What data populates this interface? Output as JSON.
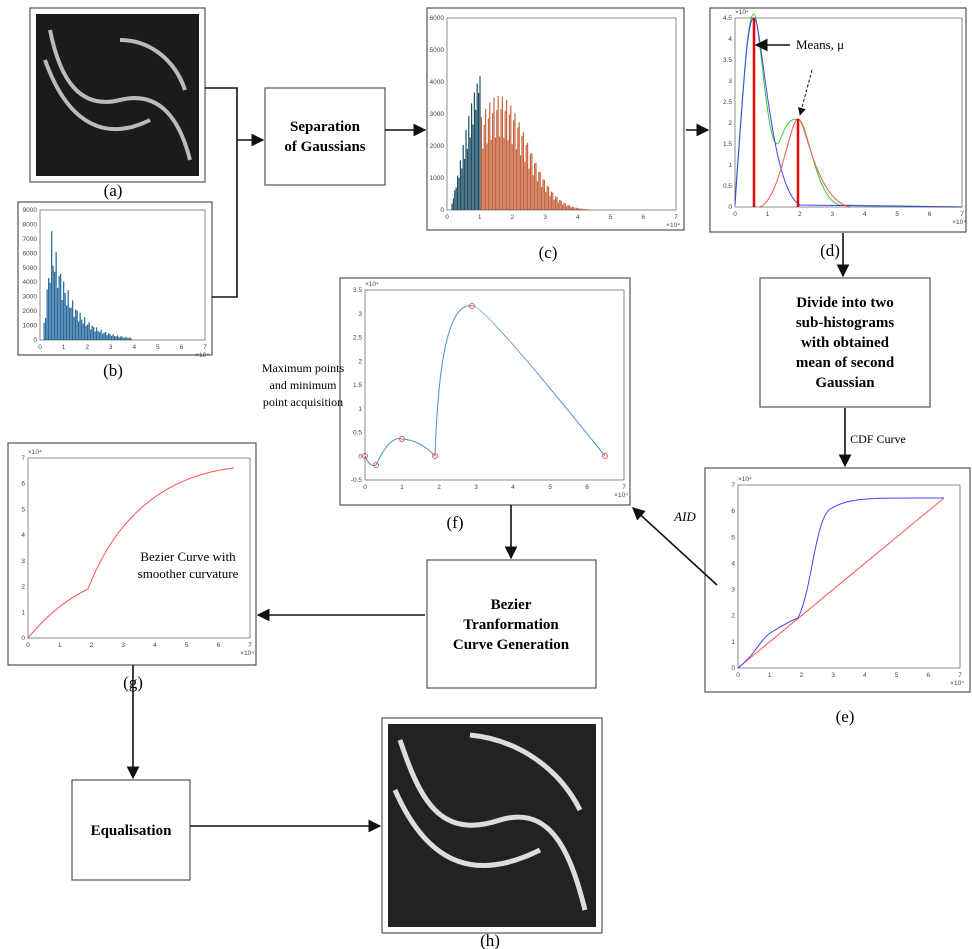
{
  "panels": {
    "a": {
      "label": "(a)"
    },
    "b": {
      "label": "(b)",
      "y_ticks": [
        0,
        1000,
        2000,
        3000,
        4000,
        5000,
        6000,
        7000,
        8000,
        9000
      ],
      "x_ticks": [
        0,
        1,
        2,
        3,
        4,
        5,
        6,
        7
      ],
      "x_exponent": "×10⁴"
    },
    "c": {
      "label": "(c)",
      "y_ticks": [
        0,
        1000,
        2000,
        3000,
        4000,
        5000,
        6000
      ],
      "x_ticks": [
        0,
        1,
        2,
        3,
        4,
        5,
        6,
        7
      ],
      "x_exponent": "×10⁴"
    },
    "d": {
      "label": "(d)",
      "y_ticks": [
        0,
        0.5,
        1,
        1.5,
        2,
        2.5,
        3,
        3.5,
        4,
        4.5
      ],
      "x_ticks": [
        0,
        1,
        2,
        3,
        4,
        5,
        6,
        7
      ],
      "y_exponent": "×10⁴",
      "x_exponent": "×10⁴",
      "annotation": "Means, μ"
    },
    "e": {
      "label": "(e)",
      "y_ticks": [
        0,
        1,
        2,
        3,
        4,
        5,
        6,
        7
      ],
      "x_ticks": [
        0,
        1,
        2,
        3,
        4,
        5,
        6,
        7
      ],
      "y_exponent": "×10⁴",
      "x_exponent": "×10⁴"
    },
    "f": {
      "label": "(f)",
      "y_ticks": [
        -0.5,
        0,
        0.5,
        1,
        1.5,
        2,
        2.5,
        3,
        3.5
      ],
      "x_ticks": [
        0,
        1,
        2,
        3,
        4,
        5,
        6,
        7
      ],
      "y_exponent": "×10⁴",
      "x_exponent": "×10⁴"
    },
    "g": {
      "label": "(g)",
      "y_ticks": [
        0,
        1,
        2,
        3,
        4,
        5,
        6,
        7
      ],
      "x_ticks": [
        0,
        1,
        2,
        3,
        4,
        5,
        6,
        7
      ],
      "y_exponent": "×10⁴",
      "x_exponent": "×10⁴",
      "annotation": [
        "Bezier Curve with",
        "smoother curvature"
      ]
    },
    "h": {
      "label": "(h)"
    }
  },
  "steps": {
    "separation": [
      "Separation",
      "of Gaussians"
    ],
    "divide": [
      "Divide into two",
      "sub-histograms",
      "with obtained",
      "mean of second",
      "Gaussian"
    ],
    "bezier": [
      "Bezier",
      "Tranformation",
      "Curve Generation"
    ],
    "equalisation": [
      "Equalisation"
    ]
  },
  "edge_labels": {
    "cdf": "CDF Curve",
    "aid": "AID",
    "extrema": [
      "Maximum points",
      "and minimum",
      "point acquisition"
    ]
  }
}
